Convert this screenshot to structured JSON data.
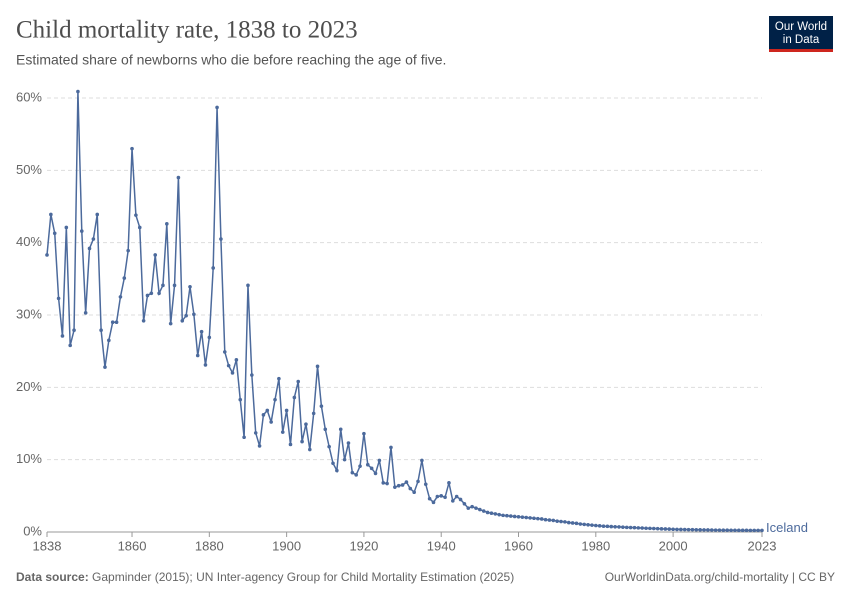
{
  "chart_data": {
    "type": "line",
    "title": "Child mortality rate, 1838 to 2023",
    "subtitle": "Estimated share of newborns who die before reaching the age of five.",
    "logo": [
      "Our World",
      "in Data"
    ],
    "source_label": "Data source:",
    "source": "Gapminder (2015); UN Inter-agency Group for Child Mortality Estimation (2025)",
    "credit": "OurWorldinData.org/child-mortality | CC BY",
    "grid": true,
    "xlim": [
      1838,
      2023
    ],
    "ylim": [
      0,
      60
    ],
    "xticks": [
      1838,
      1860,
      1880,
      1900,
      1920,
      1940,
      1960,
      1980,
      2000,
      2023
    ],
    "yticks": [
      {
        "value": 0,
        "label": "0%"
      },
      {
        "value": 10,
        "label": "10%"
      },
      {
        "value": 20,
        "label": "20%"
      },
      {
        "value": 30,
        "label": "30%"
      },
      {
        "value": 40,
        "label": "40%"
      },
      {
        "value": 50,
        "label": "50%"
      },
      {
        "value": 60,
        "label": "60%"
      }
    ],
    "x": [
      1838,
      1839,
      1840,
      1841,
      1842,
      1843,
      1844,
      1845,
      1846,
      1847,
      1848,
      1849,
      1850,
      1851,
      1852,
      1853,
      1854,
      1855,
      1856,
      1857,
      1858,
      1859,
      1860,
      1861,
      1862,
      1863,
      1864,
      1865,
      1866,
      1867,
      1868,
      1869,
      1870,
      1871,
      1872,
      1873,
      1874,
      1875,
      1876,
      1877,
      1878,
      1879,
      1880,
      1881,
      1882,
      1883,
      1884,
      1885,
      1886,
      1887,
      1888,
      1889,
      1890,
      1891,
      1892,
      1893,
      1894,
      1895,
      1896,
      1897,
      1898,
      1899,
      1900,
      1901,
      1902,
      1903,
      1904,
      1905,
      1906,
      1907,
      1908,
      1909,
      1910,
      1911,
      1912,
      1913,
      1914,
      1915,
      1916,
      1917,
      1918,
      1919,
      1920,
      1921,
      1922,
      1923,
      1924,
      1925,
      1926,
      1927,
      1928,
      1929,
      1930,
      1931,
      1932,
      1933,
      1934,
      1935,
      1936,
      1937,
      1938,
      1939,
      1940,
      1941,
      1942,
      1943,
      1944,
      1945,
      1946,
      1947,
      1948,
      1949,
      1950,
      1951,
      1952,
      1953,
      1954,
      1955,
      1956,
      1957,
      1958,
      1959,
      1960,
      1961,
      1962,
      1963,
      1964,
      1965,
      1966,
      1967,
      1968,
      1969,
      1970,
      1971,
      1972,
      1973,
      1974,
      1975,
      1976,
      1977,
      1978,
      1979,
      1980,
      1981,
      1982,
      1983,
      1984,
      1985,
      1986,
      1987,
      1988,
      1989,
      1990,
      1991,
      1992,
      1993,
      1994,
      1995,
      1996,
      1997,
      1998,
      1999,
      2000,
      2001,
      2002,
      2003,
      2004,
      2005,
      2006,
      2007,
      2008,
      2009,
      2010,
      2011,
      2012,
      2013,
      2014,
      2015,
      2016,
      2017,
      2018,
      2019,
      2020,
      2021,
      2022,
      2023
    ],
    "series": [
      {
        "name": "Iceland",
        "color": "#4c6a9c",
        "values": [
          38.3,
          43.9,
          41.3,
          32.3,
          27.1,
          42.1,
          25.8,
          27.9,
          60.9,
          41.6,
          30.3,
          39.2,
          40.5,
          43.9,
          27.9,
          22.8,
          26.5,
          29.0,
          29.0,
          32.5,
          35.1,
          38.9,
          53.0,
          43.8,
          42.1,
          29.2,
          32.7,
          33.0,
          38.3,
          33.0,
          34.1,
          42.6,
          28.8,
          34.1,
          49.0,
          29.2,
          29.9,
          33.9,
          30.1,
          24.4,
          27.7,
          23.1,
          26.9,
          36.5,
          58.7,
          40.5,
          24.9,
          23.0,
          22.0,
          23.8,
          18.3,
          13.1,
          34.1,
          21.7,
          13.7,
          11.9,
          16.2,
          16.8,
          15.2,
          18.3,
          21.2,
          13.8,
          16.8,
          12.1,
          18.6,
          20.8,
          12.5,
          14.9,
          11.4,
          16.4,
          22.9,
          17.4,
          14.2,
          11.8,
          9.5,
          8.5,
          14.2,
          10.0,
          12.3,
          8.2,
          7.9,
          9.1,
          13.6,
          9.3,
          8.8,
          8.1,
          9.9,
          6.8,
          6.7,
          11.7,
          6.2,
          6.4,
          6.5,
          6.9,
          6.0,
          5.5,
          7.0,
          9.9,
          6.6,
          4.6,
          4.1,
          4.9,
          5.0,
          4.8,
          6.8,
          4.3,
          4.9,
          4.5,
          3.9,
          3.3,
          3.5,
          3.3,
          3.1,
          2.9,
          2.7,
          2.6,
          2.5,
          2.4,
          2.3,
          2.25,
          2.2,
          2.15,
          2.1,
          2.05,
          2.0,
          1.95,
          1.9,
          1.85,
          1.8,
          1.7,
          1.65,
          1.6,
          1.5,
          1.45,
          1.4,
          1.3,
          1.25,
          1.2,
          1.1,
          1.05,
          1.0,
          0.95,
          0.9,
          0.85,
          0.8,
          0.78,
          0.75,
          0.72,
          0.7,
          0.67,
          0.64,
          0.62,
          0.6,
          0.57,
          0.55,
          0.52,
          0.5,
          0.48,
          0.46,
          0.44,
          0.42,
          0.4,
          0.38,
          0.36,
          0.35,
          0.34,
          0.33,
          0.32,
          0.31,
          0.3,
          0.29,
          0.28,
          0.27,
          0.26,
          0.26,
          0.25,
          0.25,
          0.24,
          0.24,
          0.23,
          0.23,
          0.23,
          0.22,
          0.22,
          0.22,
          0.22
        ]
      }
    ]
  }
}
